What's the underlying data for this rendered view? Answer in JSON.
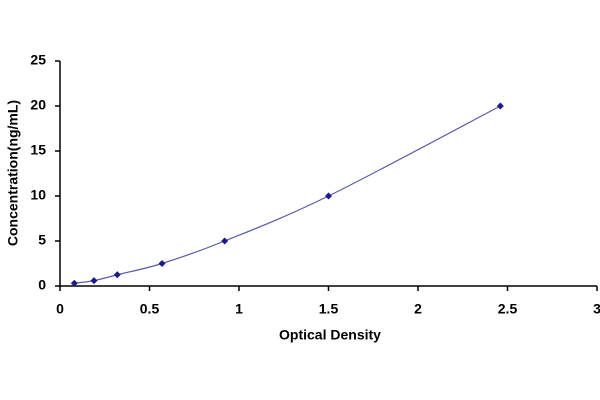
{
  "chart_data": {
    "type": "scatter",
    "x_label": "Optical Density",
    "y_label": "Concentration(ng/mL)",
    "series": [
      {
        "color": "#1a1a8c",
        "line_color": "#5a5aa8",
        "x": [
          0.08,
          0.19,
          0.32,
          0.57,
          0.92,
          1.5,
          2.46
        ],
        "values": [
          0.3,
          0.6,
          1.25,
          2.5,
          5,
          10,
          20
        ]
      }
    ],
    "smooth_line": true,
    "xlim": [
      0,
      3
    ],
    "xticks": [
      0,
      0.5,
      1,
      1.5,
      2,
      2.5,
      3
    ],
    "ylim": [
      0,
      25
    ],
    "yticks": [
      0,
      5,
      10,
      15,
      20,
      25
    ],
    "grid": false
  }
}
